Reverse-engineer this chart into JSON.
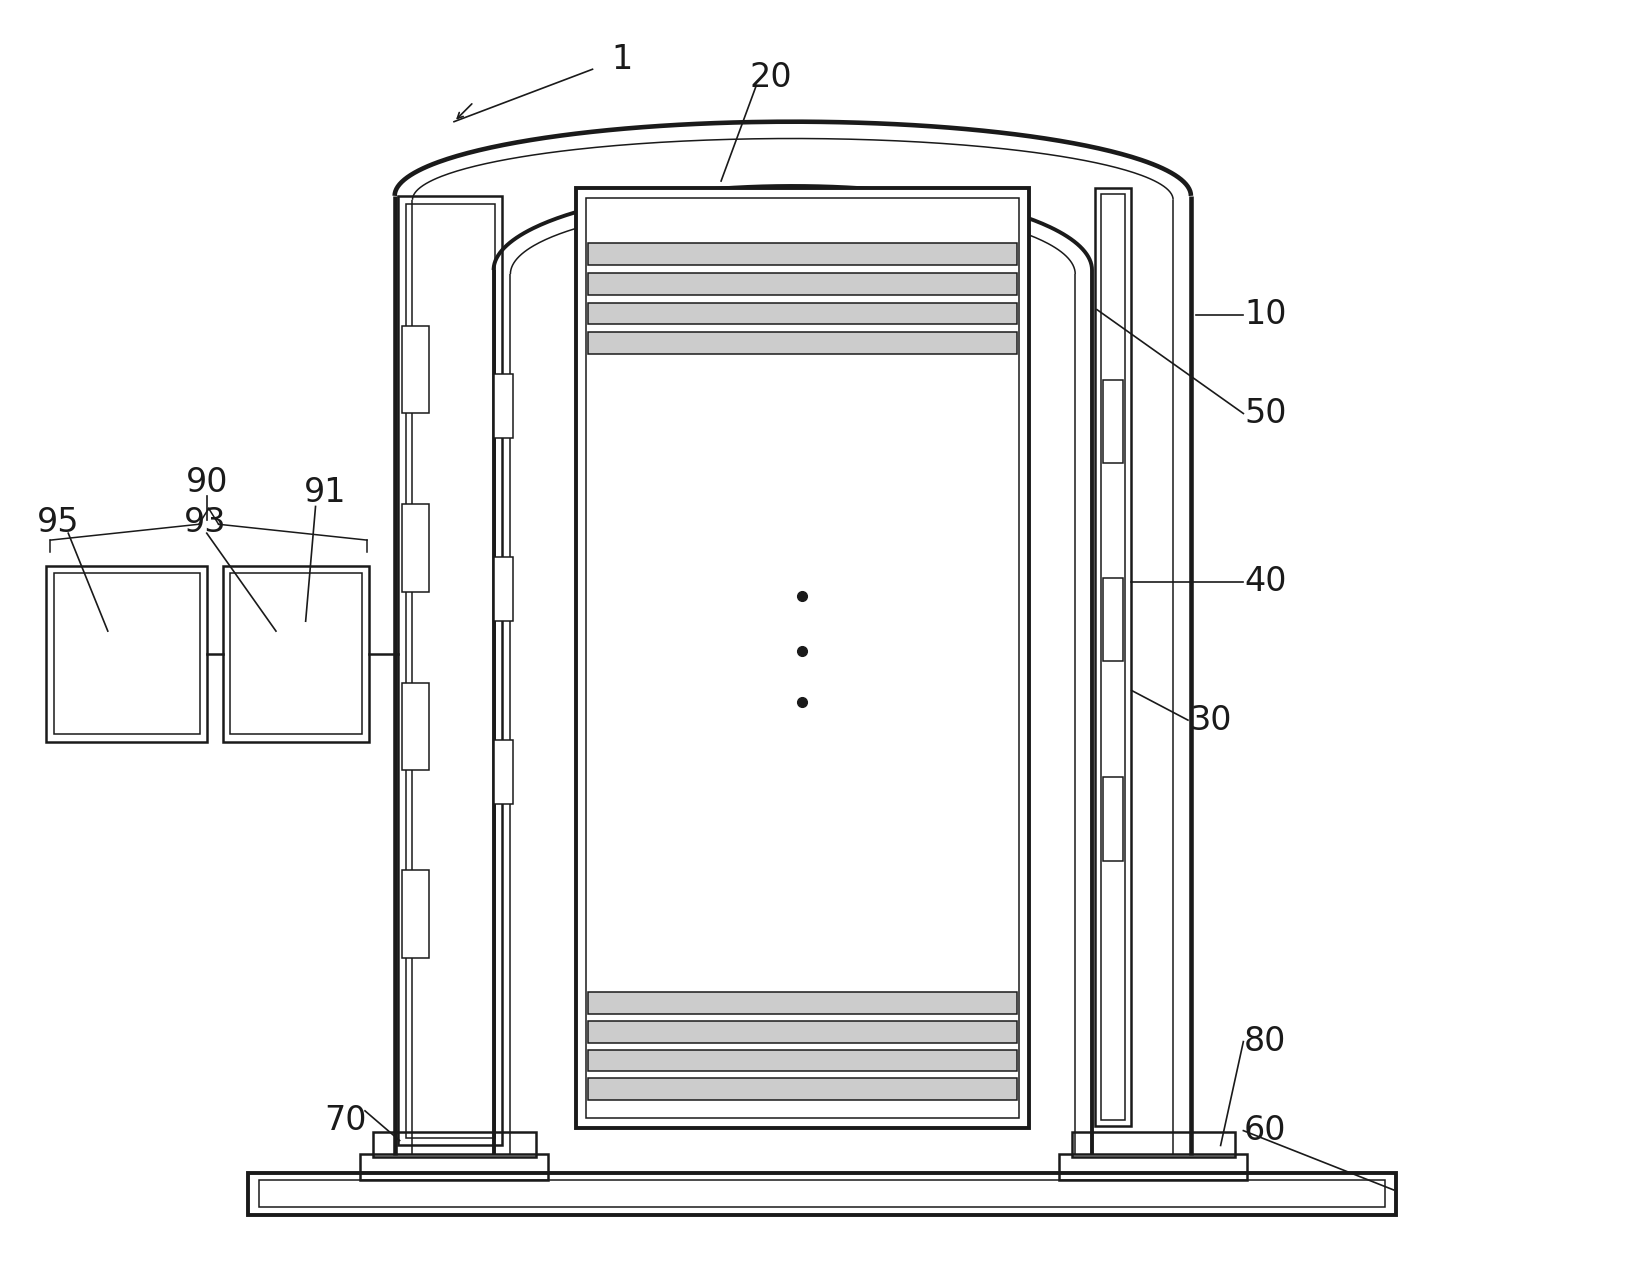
{
  "bg_color": "#ffffff",
  "line_color": "#1a1a1a",
  "fig_width": 16.41,
  "fig_height": 12.81,
  "lw_thick": 2.8,
  "lw_med": 1.8,
  "lw_thin": 1.1
}
